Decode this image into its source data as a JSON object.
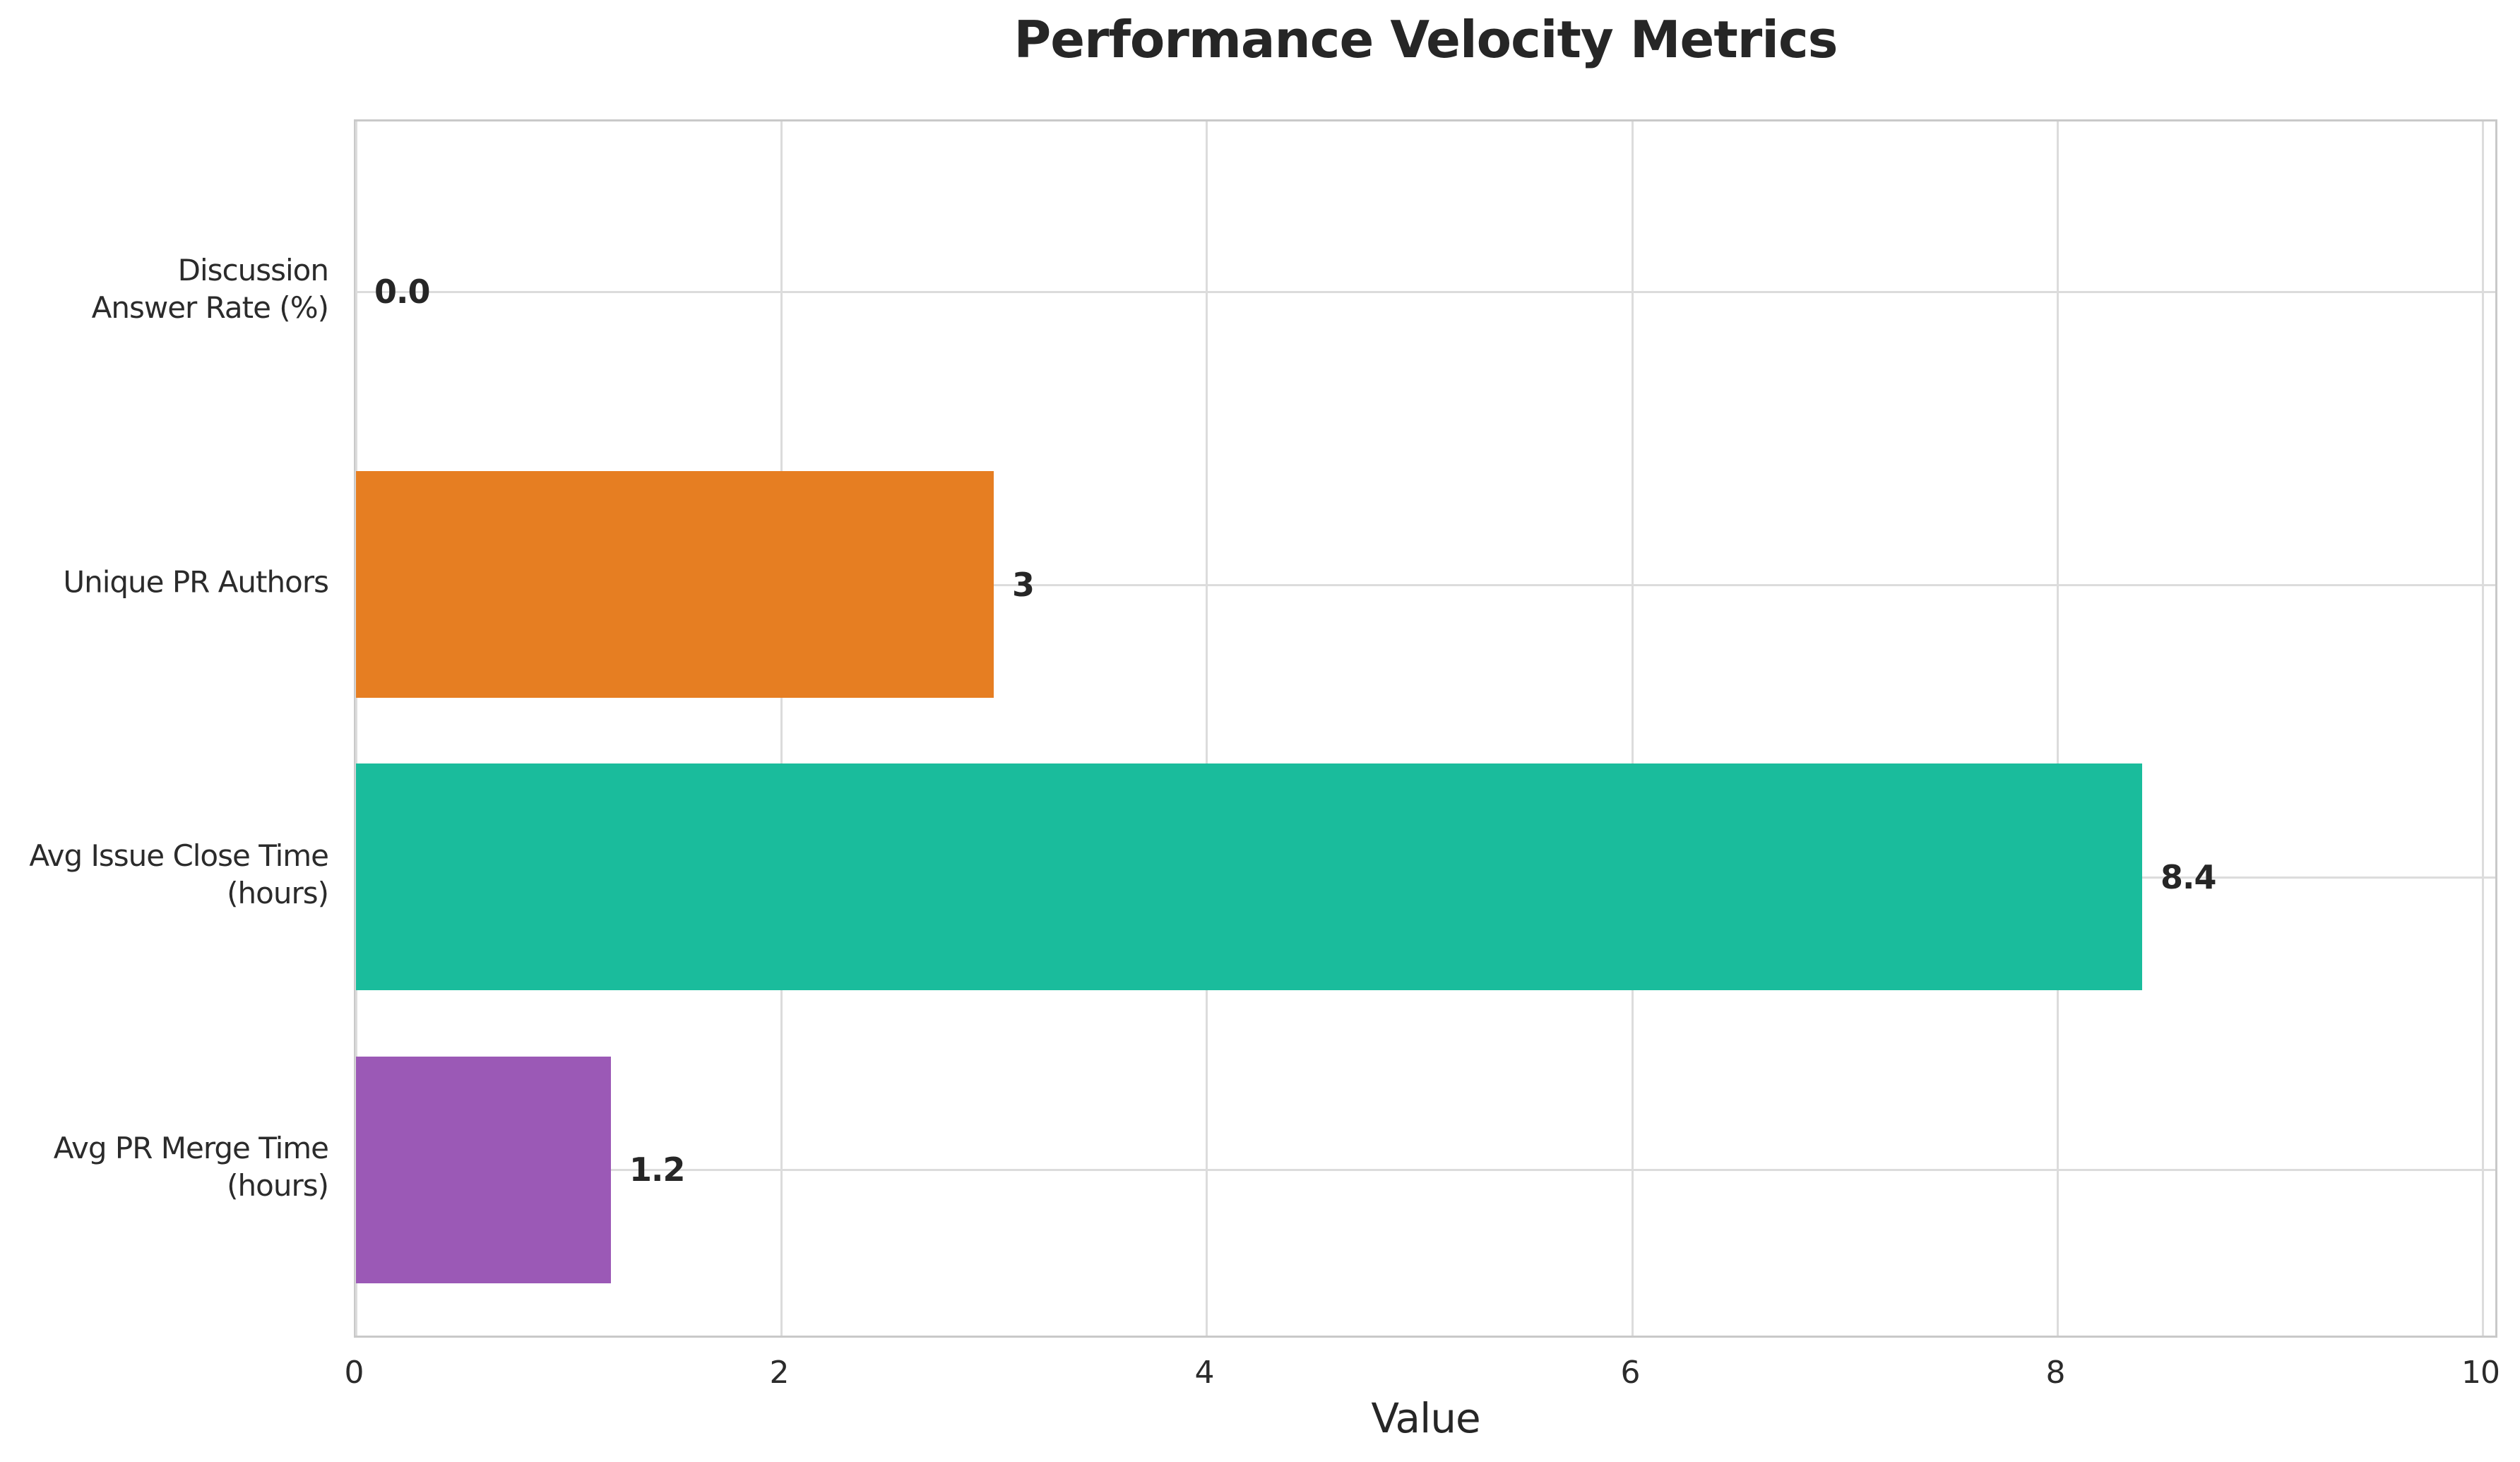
{
  "chart_data": {
    "type": "bar",
    "orientation": "horizontal",
    "title": "Performance Velocity Metrics",
    "xlabel": "Value",
    "ylabel": "",
    "categories": [
      "Discussion\nAnswer Rate (%)",
      "Unique PR Authors",
      "Avg Issue Close Time\n(hours)",
      "Avg PR Merge Time\n(hours)"
    ],
    "values": [
      0.0,
      3,
      8.4,
      1.2
    ],
    "value_labels": [
      "0.0",
      "3",
      "8.4",
      "1.2"
    ],
    "bar_colors": [
      null,
      "#e67e22",
      "#1abc9c",
      "#9b59b6"
    ],
    "xticks": [
      "0",
      "2",
      "4",
      "6",
      "8",
      "10"
    ],
    "xtick_values": [
      0,
      2,
      4,
      6,
      8,
      10
    ],
    "xlim": [
      0,
      10.08
    ],
    "grid": "both",
    "legend_position": "none",
    "colors": {
      "background": "#ffffff",
      "grid": "#dcdcdc",
      "spine": "#c9c9c9",
      "text": "#2b2b2b",
      "title_text": "#262626",
      "value_label_text": "#262626"
    }
  }
}
